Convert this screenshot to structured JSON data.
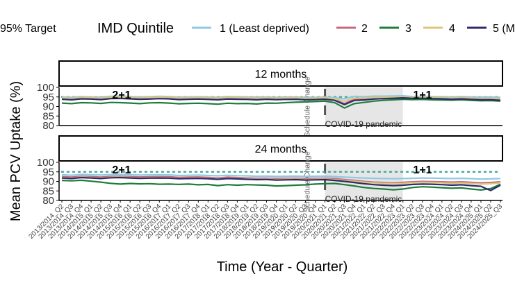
{
  "chart_data": {
    "type": "line",
    "ylabel": "Mean PCV Uptake (%)",
    "xlabel": "Time (Year - Quarter)",
    "legend": {
      "target_label": "95% Target",
      "title": "IMD Quintile",
      "position": "top",
      "entries": [
        "1 (Least deprived)",
        "2",
        "3",
        "4",
        "5 (M"
      ]
    },
    "target_value": 95,
    "series_colors": [
      "#8ec9e3",
      "#c5677f",
      "#1e7d3a",
      "#dcc67a",
      "#2e2a6e"
    ],
    "target_color": "#45a89e",
    "x_categories": [
      "2013/2014_Q2",
      "2013/2014_Q3",
      "2013/2014_Q4",
      "2014/2015_Q1",
      "2014/2015_Q2",
      "2014/2015_Q3",
      "2014/2015_Q4",
      "2015/2016_Q1",
      "2015/2016_Q2",
      "2015/2016_Q3",
      "2015/2016_Q4",
      "2016/2017_Q1",
      "2016/2017_Q2",
      "2016/2017_Q3",
      "2016/2017_Q4",
      "2017/2018_Q1",
      "2017/2018_Q2",
      "2017/2018_Q3",
      "2017/2018_Q4",
      "2018/2019_Q1",
      "2018/2019_Q2",
      "2018/2019_Q3",
      "2018/2019_Q4",
      "2019/2020_Q1",
      "2019/2020_Q2",
      "2019/2020_Q3",
      "2019/2020_Q4",
      "2020/2021_Q1",
      "2020/2021_Q2",
      "2020/2021_Q3",
      "2020/2021_Q4",
      "2021/2022_Q1",
      "2021/2022_Q2",
      "2021/2022_Q3",
      "2021/2022_Q4",
      "2022/2023_Q1",
      "2022/2023_Q2",
      "2022/2023_Q3",
      "2022/2023_Q4",
      "2023/2024_Q1",
      "2023/2024_Q2",
      "2023/2024_Q3",
      "2023/2024_Q4",
      "2024/2025_Q1",
      "2024/2025_Q2",
      "2024/2025_Q3"
    ],
    "annotations": {
      "schedule_change_label": "Schedule Change",
      "covid_label": "COVID-19 pandemic",
      "covid_start": "2020/2021_Q1",
      "covid_end": "2022/2023_Q1",
      "schedule_change_at": "2020/2021_Q1",
      "before_label": "2+1",
      "after_label": "1+1"
    },
    "facets": [
      {
        "title": "12 months",
        "ylim": [
          80,
          100
        ],
        "yticks": [
          80,
          85,
          90,
          95,
          100
        ],
        "series": [
          {
            "name": "1 (Least deprived)",
            "values": [
              95.0,
              94.8,
              95.2,
              95.0,
              94.9,
              95.3,
              95.4,
              95.2,
              95.0,
              95.1,
              95.3,
              95.2,
              94.9,
              95.0,
              95.1,
              95.0,
              94.8,
              95.2,
              95.1,
              95.0,
              94.9,
              95.0,
              94.8,
              94.9,
              95.0,
              94.7,
              94.8,
              95.0,
              94.6,
              94.0,
              95.3,
              95.1,
              95.4,
              95.4,
              95.5,
              95.6,
              95.2,
              95.3,
              95.2,
              95.1,
              95.0,
              95.2,
              95.0,
              94.9,
              95.0,
              94.8
            ]
          },
          {
            "name": "2",
            "values": [
              94.2,
              93.8,
              94.5,
              94.3,
              94.0,
              94.6,
              94.8,
              94.5,
              94.2,
              94.4,
              94.6,
              94.5,
              94.1,
              94.3,
              94.4,
              94.2,
              94.0,
              94.5,
              94.3,
              94.2,
              94.0,
              94.2,
              94.0,
              94.1,
              94.2,
              93.9,
              94.0,
              94.2,
              93.5,
              91.5,
              93.8,
              93.7,
              94.0,
              94.1,
              94.2,
              94.3,
              94.0,
              94.1,
              94.0,
              93.9,
              93.8,
              94.0,
              93.8,
              93.6,
              93.7,
              93.4
            ]
          },
          {
            "name": "3",
            "values": [
              91.8,
              91.5,
              92.0,
              91.9,
              91.6,
              92.1,
              92.0,
              91.8,
              91.5,
              91.9,
              92.0,
              91.8,
              91.4,
              91.6,
              91.7,
              91.5,
              91.2,
              91.7,
              91.5,
              91.6,
              91.3,
              91.8,
              91.7,
              92.0,
              92.2,
              92.4,
              92.6,
              92.8,
              92.0,
              89.2,
              91.5,
              92.1,
              92.8,
              93.2,
              93.5,
              93.8,
              93.6,
              93.7,
              93.5,
              93.4,
              93.3,
              93.5,
              93.2,
              93.0,
              93.1,
              92.8
            ]
          },
          {
            "name": "4",
            "values": [
              94.6,
              94.3,
              94.8,
              94.7,
              94.4,
              94.9,
              95.0,
              94.8,
              94.6,
              94.7,
              94.9,
              94.8,
              94.5,
              94.6,
              94.7,
              94.6,
              94.4,
              94.8,
              94.7,
              94.6,
              94.4,
              94.6,
              94.4,
              94.5,
              94.6,
              94.3,
              94.4,
              94.6,
              94.0,
              92.8,
              94.3,
              94.4,
              94.7,
              94.8,
              94.9,
              95.0,
              94.7,
              94.8,
              94.7,
              94.6,
              94.5,
              94.6,
              94.4,
              94.2,
              94.3,
              94.1
            ]
          },
          {
            "name": "5 (M",
            "values": [
              93.8,
              93.5,
              94.0,
              93.9,
              93.6,
              94.1,
              94.2,
              94.0,
              93.8,
              93.9,
              94.1,
              94.0,
              93.6,
              93.8,
              93.9,
              93.7,
              93.5,
              93.9,
              93.8,
              93.7,
              93.5,
              93.8,
              93.6,
              93.7,
              93.8,
              93.5,
              93.6,
              93.8,
              93.2,
              91.0,
              93.2,
              93.4,
              93.9,
              94.1,
              94.3,
              94.5,
              94.2,
              94.3,
              94.1,
              94.0,
              93.8,
              94.0,
              93.7,
              93.5,
              93.5,
              93.2
            ]
          }
        ]
      },
      {
        "title": "24 months",
        "ylim": [
          80,
          100
        ],
        "yticks": [
          80,
          85,
          90,
          95,
          100
        ],
        "series": [
          {
            "name": "1 (Least deprived)",
            "values": [
              93.5,
              93.2,
              93.7,
              93.5,
              93.3,
              93.6,
              93.7,
              93.5,
              93.3,
              93.4,
              93.5,
              93.4,
              93.1,
              93.2,
              93.3,
              93.1,
              92.9,
              93.2,
              93.0,
              92.9,
              92.7,
              92.8,
              92.6,
              92.7,
              92.8,
              92.6,
              92.7,
              92.8,
              92.5,
              92.2,
              92.0,
              91.8,
              91.6,
              91.5,
              91.4,
              91.5,
              91.6,
              91.8,
              91.7,
              91.6,
              91.5,
              91.6,
              91.4,
              91.2,
              91.3,
              91.5
            ]
          },
          {
            "name": "2",
            "values": [
              92.5,
              92.2,
              92.7,
              92.5,
              92.2,
              92.6,
              92.7,
              92.5,
              92.3,
              92.4,
              92.5,
              92.4,
              92.1,
              92.2,
              92.3,
              92.1,
              91.8,
              92.2,
              92.0,
              91.8,
              91.6,
              91.7,
              91.5,
              91.6,
              91.7,
              91.5,
              91.6,
              91.7,
              91.4,
              91.0,
              90.5,
              90.0,
              89.6,
              89.4,
              89.2,
              89.5,
              89.8,
              90.0,
              89.9,
              89.8,
              89.6,
              89.8,
              89.5,
              89.2,
              89.4,
              89.8
            ]
          },
          {
            "name": "3",
            "values": [
              90.5,
              90.3,
              90.6,
              90.1,
              89.6,
              89.0,
              88.6,
              88.9,
              88.7,
              88.8,
              88.5,
              88.6,
              88.4,
              88.6,
              88.2,
              88.4,
              87.8,
              88.3,
              88.0,
              88.3,
              88.1,
              88.0,
              87.6,
              87.8,
              88.0,
              88.2,
              88.6,
              88.8,
              88.9,
              88.3,
              87.6,
              86.8,
              86.3,
              86.0,
              85.6,
              86.0,
              86.8,
              87.2,
              87.0,
              86.7,
              86.4,
              86.6,
              86.0,
              85.5,
              86.2,
              88.5
            ]
          },
          {
            "name": "4",
            "values": [
              92.0,
              91.7,
              92.2,
              92.0,
              91.7,
              92.1,
              92.2,
              92.0,
              91.8,
              91.9,
              92.0,
              91.9,
              91.6,
              91.7,
              91.8,
              91.6,
              91.3,
              91.7,
              91.5,
              91.3,
              91.1,
              91.2,
              91.0,
              91.1,
              91.2,
              91.0,
              91.1,
              91.2,
              90.9,
              90.5,
              90.0,
              89.6,
              89.2,
              89.0,
              88.8,
              89.0,
              89.3,
              89.5,
              89.4,
              89.2,
              89.0,
              89.2,
              88.9,
              88.6,
              88.8,
              89.2
            ]
          },
          {
            "name": "5 (M",
            "values": [
              91.8,
              91.5,
              92.0,
              91.8,
              91.5,
              91.9,
              92.0,
              91.8,
              91.6,
              91.7,
              91.8,
              91.7,
              91.4,
              91.5,
              91.6,
              91.4,
              91.1,
              91.5,
              91.3,
              91.1,
              90.9,
              91.0,
              90.7,
              90.8,
              90.9,
              90.7,
              90.8,
              90.9,
              90.5,
              90.0,
              89.4,
              88.8,
              88.3,
              88.0,
              87.8,
              88.0,
              88.4,
              88.6,
              88.5,
              88.3,
              88.0,
              88.2,
              87.8,
              87.4,
              85.2,
              88.0
            ]
          }
        ]
      }
    ]
  }
}
